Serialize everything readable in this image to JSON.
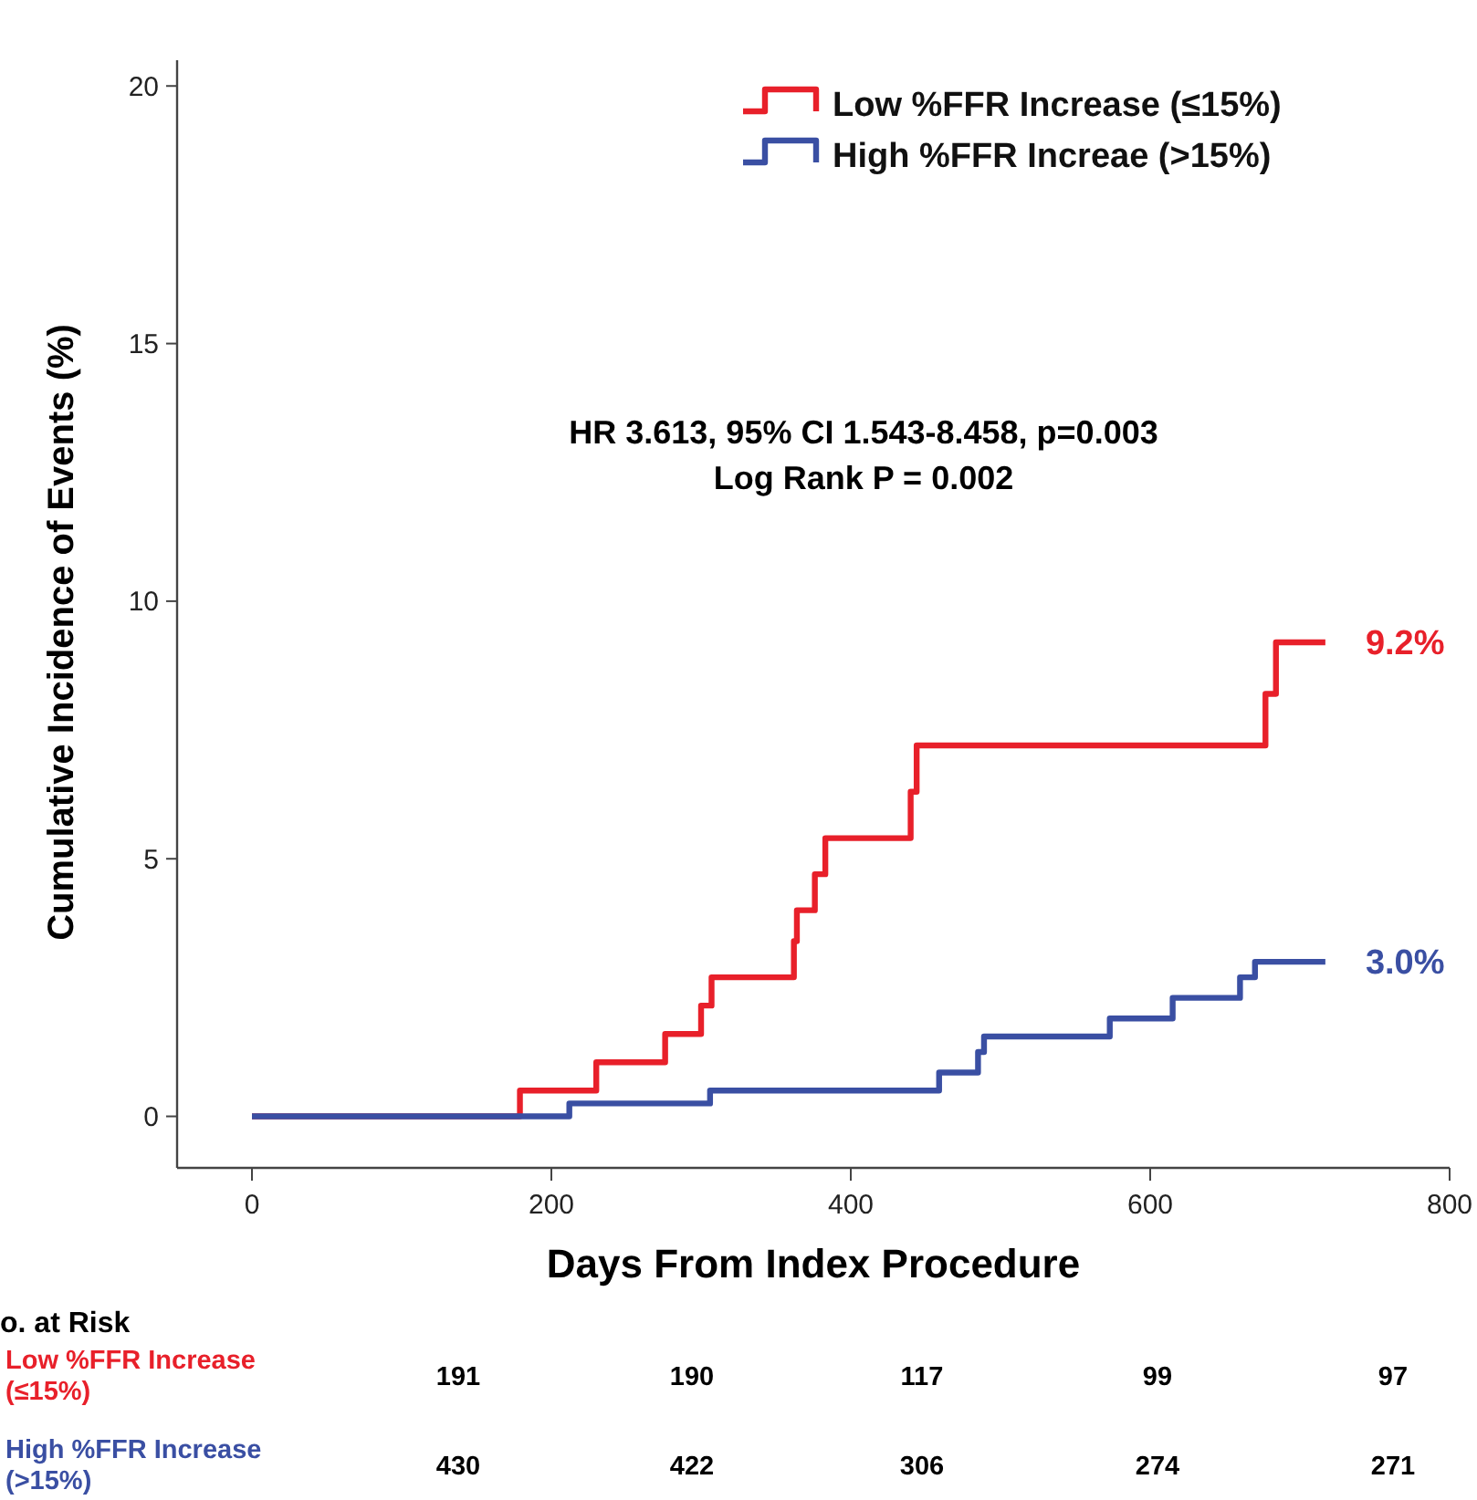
{
  "chart_data": {
    "type": "step",
    "xlabel": "Days From Index Procedure",
    "ylabel": "Cumulative Incidence of Events (%)",
    "xlim": [
      -50,
      800
    ],
    "xticks": [
      0,
      200,
      400,
      600,
      800
    ],
    "ylim": [
      -1,
      20.5
    ],
    "yticks": [
      0,
      5,
      10,
      15,
      20
    ],
    "legend": "top right",
    "grid": false,
    "marker": "none",
    "line_style": "solid",
    "series": [
      {
        "name": "Low %FFR Increase (≤15%)",
        "color": "#e8202a",
        "x": [
          0,
          179,
          230,
          276,
          300,
          307,
          362,
          364,
          376,
          383,
          440,
          444,
          677,
          684,
          717
        ],
        "values": [
          0,
          0.5,
          1.05,
          1.6,
          2.15,
          2.7,
          3.4,
          4.0,
          4.7,
          5.4,
          6.3,
          7.2,
          8.2,
          9.2,
          9.2
        ]
      },
      {
        "name": "High %FFR Increae (>15%)",
        "color": "#3a4fa3",
        "x": [
          0,
          212,
          306,
          459,
          485,
          489,
          573,
          615,
          660,
          670,
          717
        ],
        "values": [
          0,
          0.25,
          0.5,
          0.85,
          1.25,
          1.55,
          1.9,
          2.3,
          2.7,
          3.0,
          3.0
        ]
      }
    ],
    "annotations": [
      "HR 3.613, 95% CI 1.543-8.458, p=0.003",
      "Log Rank P = 0.002",
      {
        "text": "9.2%",
        "x": 717,
        "y": 9.2
      },
      {
        "text": "3.0%",
        "x": 717,
        "y": 3.0
      },
      "o. at Risk",
      "Low %FFR Increase\n(≤15%)",
      "High %FFR Increase\n(>15%)",
      "191",
      "190",
      "117",
      "99",
      "97",
      "430",
      "422",
      "306",
      "274",
      "271"
    ]
  }
}
